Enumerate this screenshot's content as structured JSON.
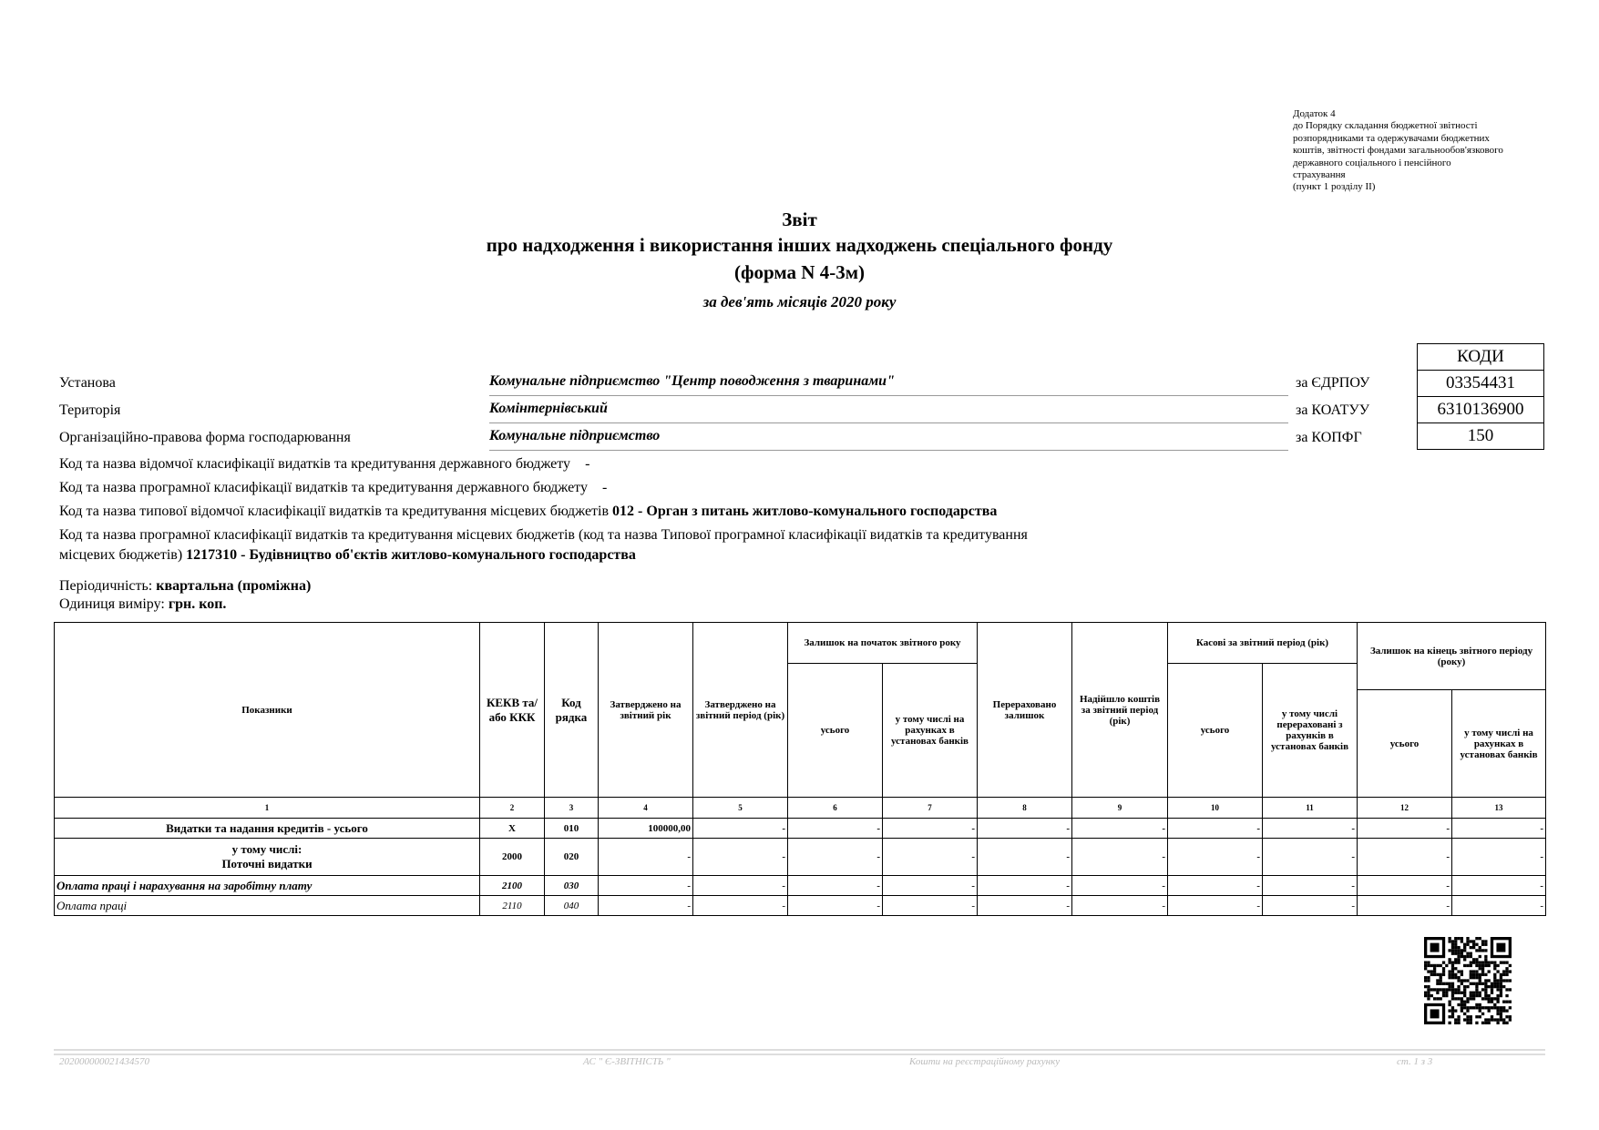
{
  "annex": [
    "Додаток 4",
    "до Порядку складання бюджетної звітності",
    "розпорядниками та одержувачами бюджетних",
    "коштів, звітності фондами загальнообов'язкового",
    "державного соціального і пенсійного",
    "страхування",
    "(пункт 1 розділу ІІ)"
  ],
  "title": {
    "line1": "Звіт",
    "line2": "про надходження і використання інших надходжень спеціального фонду",
    "line3": "(форма N 4-3м)",
    "period": "за дев'ять місяців 2020 року"
  },
  "codes": {
    "header": "КОДИ",
    "edrpou_label": "за ЄДРПОУ",
    "edrpou": "03354431",
    "koatuu_label": "за КОАТУУ",
    "koatuu": "6310136900",
    "kopfg_label": "за КОПФГ",
    "kopfg": "150"
  },
  "org": {
    "inst_label": "Установа",
    "inst": "Комунальне підприємство \"Центр поводження з тваринами\"",
    "terr_label": "Територія",
    "terr": "Комінтернівський",
    "form_label": "Організаційно-правова  форма господарювання",
    "form": "Комунальне підприємство"
  },
  "classif": {
    "l1": "Код та назва відомчої класифікації видатків та кредитування державного бюджету",
    "l1v": "-",
    "l2": "Код та назва програмної класифікації видатків та кредитування державного бюджету",
    "l2v": "-",
    "l3": "Код та назва типової відомчої класифікації видатків та кредитування місцевих бюджетів",
    "l3v": "012 - Орган з питань житлово-комунального господарства",
    "l4a": "Код та назва програмної класифікації видатків та кредитування місцевих бюджетів (код та назва Типової програмної класифікації видатків та кредитування",
    "l4b": "місцевих бюджетів)",
    "l4v": "1217310 - Будівництво об'єктів житлово-комунального господарства"
  },
  "periodicity": {
    "label": "Періодичність:",
    "value": "квартальна (проміжна)"
  },
  "unit": {
    "label": "Одиниця виміру:",
    "value": "грн. коп."
  },
  "table": {
    "headers": {
      "h1": "Показники",
      "h2": "КЕКВ та/або ККК",
      "h3": "Код рядка",
      "h4": "Затверджено на звітний рік",
      "h5": "Затверджено на звітний період (рік)",
      "g67": "Залишок на початок звітного року",
      "h6": "усього",
      "h7": "у тому числі на рахунках в установах банків",
      "h8": "Перераховано залишок",
      "h9": "Надійшло коштів за звітний період (рік)",
      "g1011": "Касові за звітний період (рік)",
      "h10": "усього",
      "h11": "у тому числі перераховані з рахунків в установах банків",
      "g1213": "Залишок на кінець звітного періоду (року)",
      "h12": "усього",
      "h13": "у тому числі на рахунках в установах банків"
    },
    "col_numbers": [
      "1",
      "2",
      "3",
      "4",
      "5",
      "6",
      "7",
      "8",
      "9",
      "10",
      "11",
      "12",
      "13"
    ],
    "rows": [
      {
        "name": "Видатки та надання кредитів - усього",
        "kekv": "X",
        "code": "010",
        "vals": [
          "100000,00",
          "-",
          "-",
          "-",
          "-",
          "-",
          "-",
          "-",
          "-",
          "-"
        ]
      },
      {
        "name": "у тому числі:",
        "name2": "Поточні  видатки",
        "kekv": "2000",
        "code": "020",
        "vals": [
          "-",
          "-",
          "-",
          "-",
          "-",
          "-",
          "-",
          "-",
          "-",
          "-"
        ]
      },
      {
        "name": "Оплата праці і нарахування на заробітну плату",
        "kekv": "2100",
        "code": "030",
        "vals": [
          "-",
          "-",
          "-",
          "-",
          "-",
          "-",
          "-",
          "-",
          "-",
          "-"
        ]
      },
      {
        "name": "Оплата праці",
        "kekv": "2110",
        "code": "040",
        "vals": [
          "-",
          "-",
          "-",
          "-",
          "-",
          "-",
          "-",
          "-",
          "-",
          "-"
        ]
      }
    ]
  },
  "footer": {
    "doc_id": "202000000021434570",
    "system": "АС \" Є-ЗВІТНІСТЬ \"",
    "account": "Кошти на реєстраційному рахунку",
    "page": "ст. 1 з 3"
  }
}
